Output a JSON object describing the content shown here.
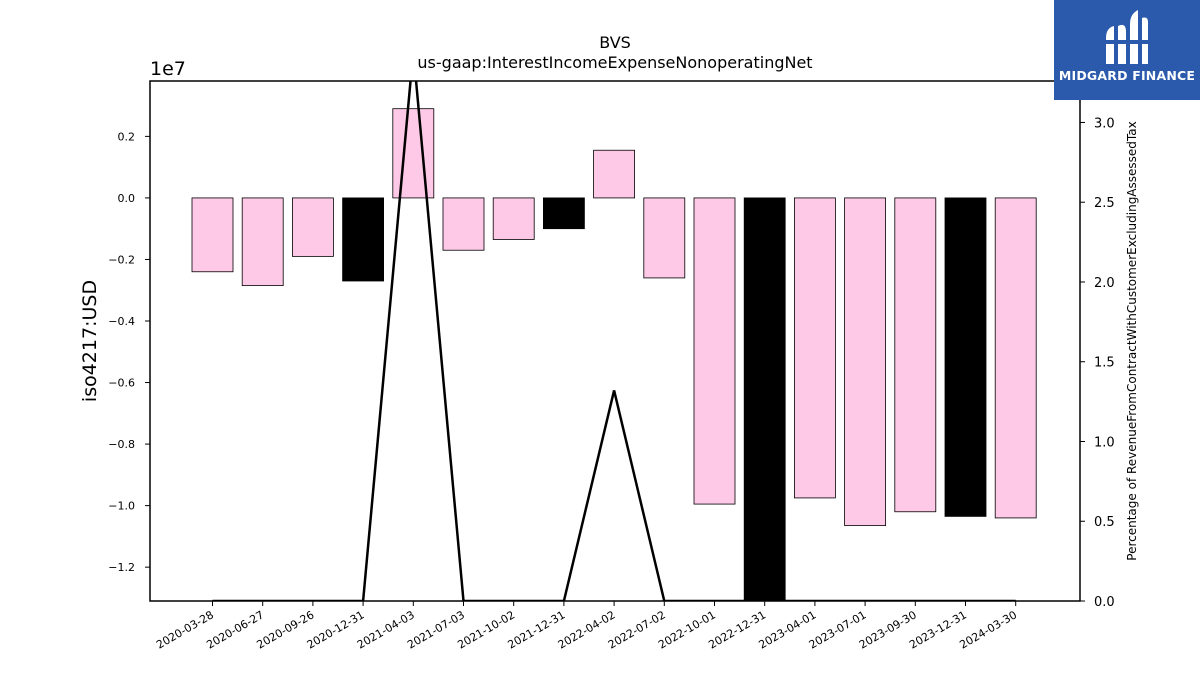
{
  "chart_data": {
    "type": "bar",
    "title": "BVS",
    "subtitle": "us-gaap:InterestIncomeExpenseNonoperatingNet",
    "ylabel": "iso4217:USD",
    "y2label": "Percentage of RevenueFromContractWithCustomerExcludingAssessedTax",
    "y_offset_label": "1e7",
    "categories": [
      "2020-03-28",
      "2020-06-27",
      "2020-09-26",
      "2020-12-31",
      "2021-04-03",
      "2021-07-03",
      "2021-10-02",
      "2021-12-31",
      "2022-04-02",
      "2022-07-02",
      "2022-10-01",
      "2022-12-31",
      "2023-04-01",
      "2023-07-01",
      "2023-09-30",
      "2023-12-31",
      "2024-03-30"
    ],
    "series": [
      {
        "values": [
          -2400000,
          -2850000,
          -1900000,
          -2700000,
          2900000,
          -1700000,
          -1350000,
          -1000000,
          1550000,
          -2600000,
          -9950000,
          -13100000,
          -9750000,
          -10650000,
          -10200000,
          -10350000,
          -10400000
        ],
        "bar_colors": [
          "#fdc9e6",
          "#fdc9e6",
          "#fdc9e6",
          "#000000",
          "#fdc9e6",
          "#fdc9e6",
          "#fdc9e6",
          "#000000",
          "#fdc9e6",
          "#fdc9e6",
          "#fdc9e6",
          "#000000",
          "#fdc9e6",
          "#fdc9e6",
          "#fdc9e6",
          "#000000",
          "#fdc9e6"
        ]
      },
      {
        "axis": "right",
        "type": "line",
        "color": "#000000",
        "values": [
          0,
          0,
          0,
          0,
          3.45,
          0,
          0,
          0,
          1.32,
          0,
          0,
          0,
          0,
          0,
          0,
          0,
          0
        ]
      }
    ],
    "ylim": [
      -13100000,
      3800000
    ],
    "y2lim": [
      0,
      3.26
    ],
    "yticks": [
      0.2,
      0.0,
      -0.2,
      -0.4,
      -0.6,
      -0.8,
      -1.0,
      -1.2
    ],
    "yticklabels": [
      "0.2",
      "0.0",
      "−0.2",
      "−0.4",
      "−0.6",
      "−0.8",
      "−1.0",
      "−1.2"
    ],
    "y2ticks": [
      0.0,
      0.5,
      1.0,
      1.5,
      2.0,
      2.5,
      3.0
    ],
    "y2ticklabels": [
      "0.0",
      "0.5",
      "1.0",
      "1.5",
      "2.0",
      "2.5",
      "3.0"
    ],
    "grid": false,
    "legend": "none"
  },
  "logo": {
    "text": "MIDGARD FINANCE",
    "icon": "midgard-logo-icon",
    "background": "#2b5aad"
  }
}
